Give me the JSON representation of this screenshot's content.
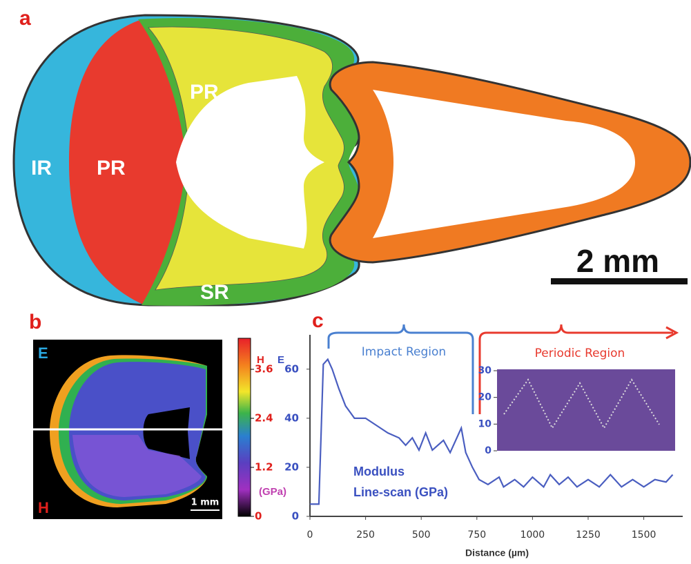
{
  "panel_a": {
    "label": "a",
    "regions": [
      "IR",
      "PR",
      "PR",
      "SR"
    ],
    "scale_bar": "2 mm"
  },
  "panel_b": {
    "label": "b",
    "map_top": "E",
    "map_bottom": "H",
    "scale_bar": "1 mm",
    "colorbar": {
      "h_title": "H",
      "e_title": "E",
      "unit": "(GPa)",
      "clim": [
        0,
        4.36
      ],
      "ticks": [
        0,
        1.2,
        2.4,
        3.6
      ]
    }
  },
  "chart_data": {
    "type": "line",
    "label": "c",
    "x": [
      0,
      40,
      60,
      80,
      100,
      130,
      160,
      200,
      250,
      300,
      350,
      400,
      430,
      460,
      490,
      520,
      550,
      600,
      630,
      680,
      700,
      730,
      760,
      800,
      850,
      870,
      920,
      960,
      1000,
      1050,
      1080,
      1120,
      1160,
      1200,
      1250,
      1300,
      1350,
      1400,
      1450,
      1500,
      1550,
      1600,
      1630
    ],
    "series": [
      {
        "color": "#4a5ec0",
        "values": [
          5,
          5,
          62,
          64,
          60,
          52,
          45,
          40,
          40,
          37,
          34,
          32,
          29,
          32,
          27,
          34,
          27,
          31,
          26,
          36,
          26,
          20,
          15,
          13,
          16,
          12,
          15,
          12,
          16,
          12,
          17,
          13,
          16,
          12,
          15,
          12,
          17,
          12,
          15,
          12,
          15,
          14,
          17
        ]
      }
    ],
    "xlim": [
      0,
      1675
    ],
    "ylim": [
      0,
      74
    ],
    "xticks": [
      0,
      250,
      500,
      750,
      1000,
      1250,
      1500
    ],
    "yticks": [
      0,
      20,
      40,
      60
    ],
    "xlabel": "Distance (µm)",
    "annotations": [
      "Impact Region",
      "Periodic Region",
      "Modulus",
      "Line-scan (GPa)"
    ],
    "inset": {
      "ylim": [
        0,
        30
      ],
      "yticks": [
        0,
        10,
        20,
        30
      ]
    }
  }
}
